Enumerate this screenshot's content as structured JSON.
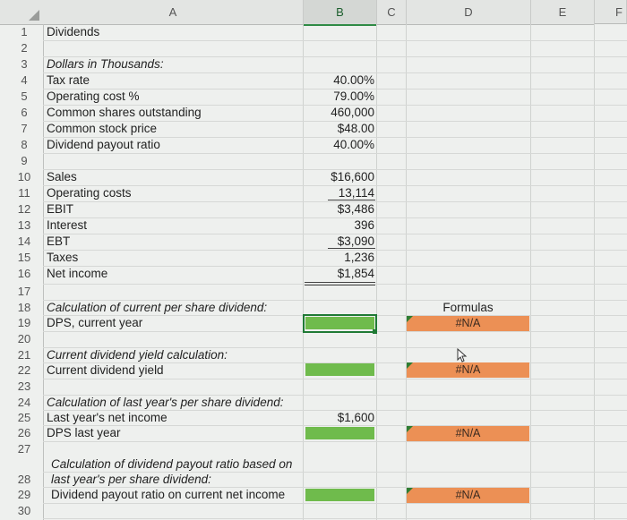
{
  "columns": [
    "A",
    "B",
    "C",
    "D",
    "E",
    "F"
  ],
  "rows": [
    "1",
    "2",
    "3",
    "4",
    "5",
    "6",
    "7",
    "8",
    "9",
    "10",
    "11",
    "12",
    "13",
    "14",
    "15",
    "16",
    "17",
    "18",
    "19",
    "20",
    "21",
    "22",
    "23",
    "24",
    "25",
    "26",
    "27",
    "28",
    "29",
    "30"
  ],
  "cells": {
    "a1": "Dividends",
    "a3": "Dollars in Thousands:",
    "a4": "Tax rate",
    "a5": "Operating cost %",
    "a6": "Common shares outstanding",
    "a7": "Common stock price",
    "a8": "Dividend payout ratio",
    "a10": "Sales",
    "a11": "Operating costs",
    "a12": "EBIT",
    "a13": "Interest",
    "a14": "EBT",
    "a15": "Taxes",
    "a16": "Net income",
    "a18": "Calculation of current per share dividend:",
    "a19": "DPS, current year",
    "a21": "Current dividend yield calculation:",
    "a22": "Current dividend yield",
    "a24": "Calculation of last year's per share dividend:",
    "a25": "Last year's net income",
    "a26": "DPS last year",
    "a27b": "Calculation of dividend payout ratio based on",
    "a28": "last year's per share dividend:",
    "a29": "Dividend payout ratio on current net income",
    "b4": "40.00%",
    "b5": "79.00%",
    "b6": "460,000",
    "b7": "$48.00",
    "b8": "40.00%",
    "b10": "$16,600",
    "b11": "13,114",
    "b12": "$3,486",
    "b13": "396",
    "b14": "$3,090",
    "b15": "1,236",
    "b16": "$1,854",
    "b25": "$1,600",
    "d18": "Formulas",
    "d19": "#N/A",
    "d22": "#N/A",
    "d26": "#N/A",
    "d29": "#N/A"
  },
  "colors": {
    "input_fill": "#6fbb4c",
    "formula_fill": "#ec9055",
    "selection": "#1f7a35"
  }
}
